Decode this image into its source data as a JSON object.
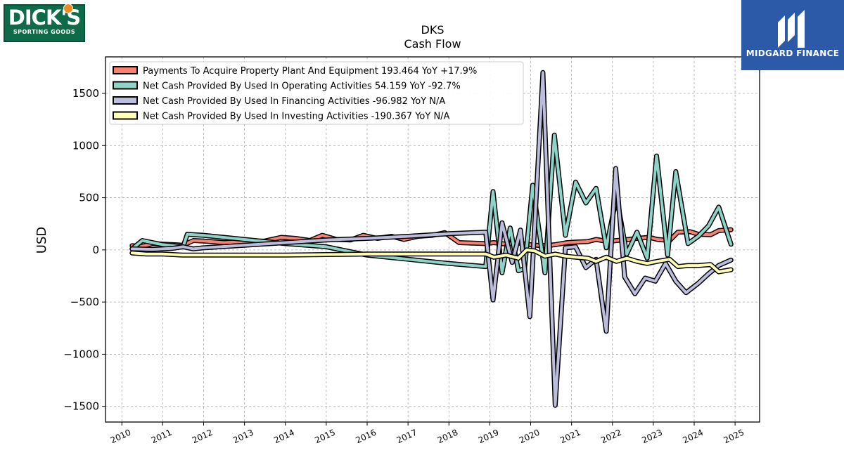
{
  "logos": {
    "left": {
      "brand": "DICK'S",
      "subtitle": "SPORTING GOODS"
    },
    "right": {
      "brand": "MIDGARD FINANCE",
      "icon": "midgard-m-icon"
    }
  },
  "chart_data": {
    "type": "line",
    "title": "DKS",
    "subtitle": "Cash Flow",
    "xlabel": "",
    "ylabel": "USD",
    "xlim": [
      2009.6,
      2025.6
    ],
    "ylim": [
      -1650,
      1850
    ],
    "x_ticks": [
      "2010",
      "2011",
      "2012",
      "2013",
      "2014",
      "2015",
      "2016",
      "2017",
      "2018",
      "2019",
      "2020",
      "2021",
      "2022",
      "2023",
      "2024",
      "2025"
    ],
    "y_ticks": [
      1500,
      1000,
      500,
      0,
      -500,
      -1000,
      -1500
    ],
    "y_tick_labels": [
      "1500",
      "1000",
      "500",
      "0",
      "−500",
      "−1000",
      "−1500"
    ],
    "grid": true,
    "legend_position": "upper-left",
    "series": [
      {
        "name": "Payments To Acquire Property Plant And Equipment",
        "legend": "Payments To Acquire Property Plant And Equipment  193.464 YoY +17.9%",
        "color": "#fa8072",
        "points": [
          [
            2010.25,
            40
          ],
          [
            2010.5,
            35
          ],
          [
            2010.75,
            60
          ],
          [
            2011.0,
            55
          ],
          [
            2011.25,
            50
          ],
          [
            2011.5,
            45
          ],
          [
            2011.75,
            90
          ],
          [
            2012.0,
            85
          ],
          [
            2012.5,
            70
          ],
          [
            2013.0,
            80
          ],
          [
            2013.5,
            85
          ],
          [
            2013.9,
            120
          ],
          [
            2014.25,
            110
          ],
          [
            2014.6,
            90
          ],
          [
            2014.9,
            140
          ],
          [
            2015.25,
            100
          ],
          [
            2015.6,
            95
          ],
          [
            2015.9,
            140
          ],
          [
            2016.25,
            110
          ],
          [
            2016.6,
            130
          ],
          [
            2016.9,
            100
          ],
          [
            2017.25,
            130
          ],
          [
            2017.6,
            140
          ],
          [
            2017.9,
            165
          ],
          [
            2018.25,
            70
          ],
          [
            2018.6,
            65
          ],
          [
            2018.9,
            60
          ],
          [
            2019.1,
            70
          ],
          [
            2019.4,
            55
          ],
          [
            2019.7,
            65
          ],
          [
            2019.9,
            55
          ],
          [
            2020.1,
            45
          ],
          [
            2020.4,
            40
          ],
          [
            2020.6,
            50
          ],
          [
            2020.9,
            70
          ],
          [
            2021.1,
            75
          ],
          [
            2021.4,
            80
          ],
          [
            2021.6,
            100
          ],
          [
            2021.9,
            80
          ],
          [
            2022.1,
            90
          ],
          [
            2022.4,
            100
          ],
          [
            2022.6,
            110
          ],
          [
            2022.9,
            120
          ],
          [
            2023.1,
            100
          ],
          [
            2023.4,
            90
          ],
          [
            2023.6,
            170
          ],
          [
            2023.9,
            175
          ],
          [
            2024.1,
            150
          ],
          [
            2024.4,
            145
          ],
          [
            2024.6,
            185
          ],
          [
            2024.9,
            193.464
          ]
        ]
      },
      {
        "name": "Net Cash Provided By Used In Operating Activities",
        "legend": "Net Cash Provided By Used In Operating Activities  54.159 YoY -92.7%",
        "color": "#8dd3c7",
        "points": [
          [
            2010.25,
            10
          ],
          [
            2010.5,
            90
          ],
          [
            2010.75,
            70
          ],
          [
            2011.0,
            50
          ],
          [
            2011.25,
            40
          ],
          [
            2011.5,
            30
          ],
          [
            2011.6,
            150
          ],
          [
            2012.0,
            140
          ],
          [
            2013.0,
            100
          ],
          [
            2014.0,
            60
          ],
          [
            2015.0,
            30
          ],
          [
            2016.0,
            -50
          ],
          [
            2017.0,
            -90
          ],
          [
            2018.0,
            -130
          ],
          [
            2018.9,
            -160
          ],
          [
            2019.08,
            560
          ],
          [
            2019.3,
            -220
          ],
          [
            2019.5,
            210
          ],
          [
            2019.7,
            -200
          ],
          [
            2019.85,
            -180
          ],
          [
            2020.05,
            620
          ],
          [
            2020.35,
            -220
          ],
          [
            2020.58,
            1100
          ],
          [
            2020.85,
            140
          ],
          [
            2021.1,
            650
          ],
          [
            2021.35,
            450
          ],
          [
            2021.6,
            590
          ],
          [
            2021.85,
            20
          ],
          [
            2022.1,
            510
          ],
          [
            2022.35,
            -40
          ],
          [
            2022.6,
            170
          ],
          [
            2022.85,
            -80
          ],
          [
            2023.08,
            900
          ],
          [
            2023.35,
            -50
          ],
          [
            2023.55,
            750
          ],
          [
            2023.85,
            60
          ],
          [
            2024.1,
            130
          ],
          [
            2024.35,
            230
          ],
          [
            2024.6,
            410
          ],
          [
            2024.9,
            54.159
          ]
        ]
      },
      {
        "name": "Net Cash Provided By Used In Financing Activities",
        "legend": "Net Cash Provided By Used In Financing Activities  -96.982 YoY N/A",
        "color": "#bcbddc",
        "points": [
          [
            2010.25,
            10
          ],
          [
            2010.75,
            5
          ],
          [
            2011.0,
            10
          ],
          [
            2011.25,
            15
          ],
          [
            2011.5,
            30
          ],
          [
            2011.75,
            10
          ],
          [
            2012.0,
            20
          ],
          [
            2013.0,
            45
          ],
          [
            2014.0,
            70
          ],
          [
            2015.0,
            95
          ],
          [
            2016.0,
            110
          ],
          [
            2017.0,
            130
          ],
          [
            2018.0,
            155
          ],
          [
            2018.9,
            170
          ],
          [
            2019.08,
            -480
          ],
          [
            2019.3,
            260
          ],
          [
            2019.55,
            -120
          ],
          [
            2019.75,
            190
          ],
          [
            2019.98,
            -640
          ],
          [
            2020.3,
            1700
          ],
          [
            2020.6,
            -1490
          ],
          [
            2020.85,
            20
          ],
          [
            2021.1,
            30
          ],
          [
            2021.35,
            -170
          ],
          [
            2021.6,
            -90
          ],
          [
            2021.85,
            -780
          ],
          [
            2022.08,
            780
          ],
          [
            2022.3,
            -260
          ],
          [
            2022.55,
            -420
          ],
          [
            2022.8,
            -270
          ],
          [
            2023.05,
            -300
          ],
          [
            2023.3,
            -130
          ],
          [
            2023.55,
            -300
          ],
          [
            2023.8,
            -410
          ],
          [
            2024.1,
            -320
          ],
          [
            2024.35,
            -230
          ],
          [
            2024.6,
            -150
          ],
          [
            2024.9,
            -96.982
          ]
        ]
      },
      {
        "name": "Net Cash Provided By Used In Investing Activities",
        "legend": "Net Cash Provided By Used In Investing Activities  -190.367 YoY N/A",
        "color": "#ffffb3",
        "points": [
          [
            2010.25,
            -30
          ],
          [
            2010.6,
            -40
          ],
          [
            2011.0,
            -40
          ],
          [
            2011.5,
            -50
          ],
          [
            2012.0,
            -50
          ],
          [
            2013.0,
            -50
          ],
          [
            2014.0,
            -50
          ],
          [
            2015.0,
            -45
          ],
          [
            2016.0,
            -40
          ],
          [
            2017.0,
            -40
          ],
          [
            2018.0,
            -40
          ],
          [
            2018.9,
            -40
          ],
          [
            2019.1,
            -70
          ],
          [
            2019.4,
            -50
          ],
          [
            2019.7,
            -80
          ],
          [
            2019.9,
            0
          ],
          [
            2020.1,
            -10
          ],
          [
            2020.35,
            -60
          ],
          [
            2020.6,
            -40
          ],
          [
            2020.85,
            -60
          ],
          [
            2021.1,
            -70
          ],
          [
            2021.4,
            -80
          ],
          [
            2021.6,
            -110
          ],
          [
            2021.85,
            -70
          ],
          [
            2022.1,
            -110
          ],
          [
            2022.35,
            -80
          ],
          [
            2022.6,
            -110
          ],
          [
            2022.85,
            -130
          ],
          [
            2023.1,
            -110
          ],
          [
            2023.4,
            -90
          ],
          [
            2023.6,
            -160
          ],
          [
            2023.85,
            -150
          ],
          [
            2024.1,
            -150
          ],
          [
            2024.4,
            -140
          ],
          [
            2024.6,
            -210
          ],
          [
            2024.9,
            -190.367
          ]
        ]
      }
    ]
  }
}
